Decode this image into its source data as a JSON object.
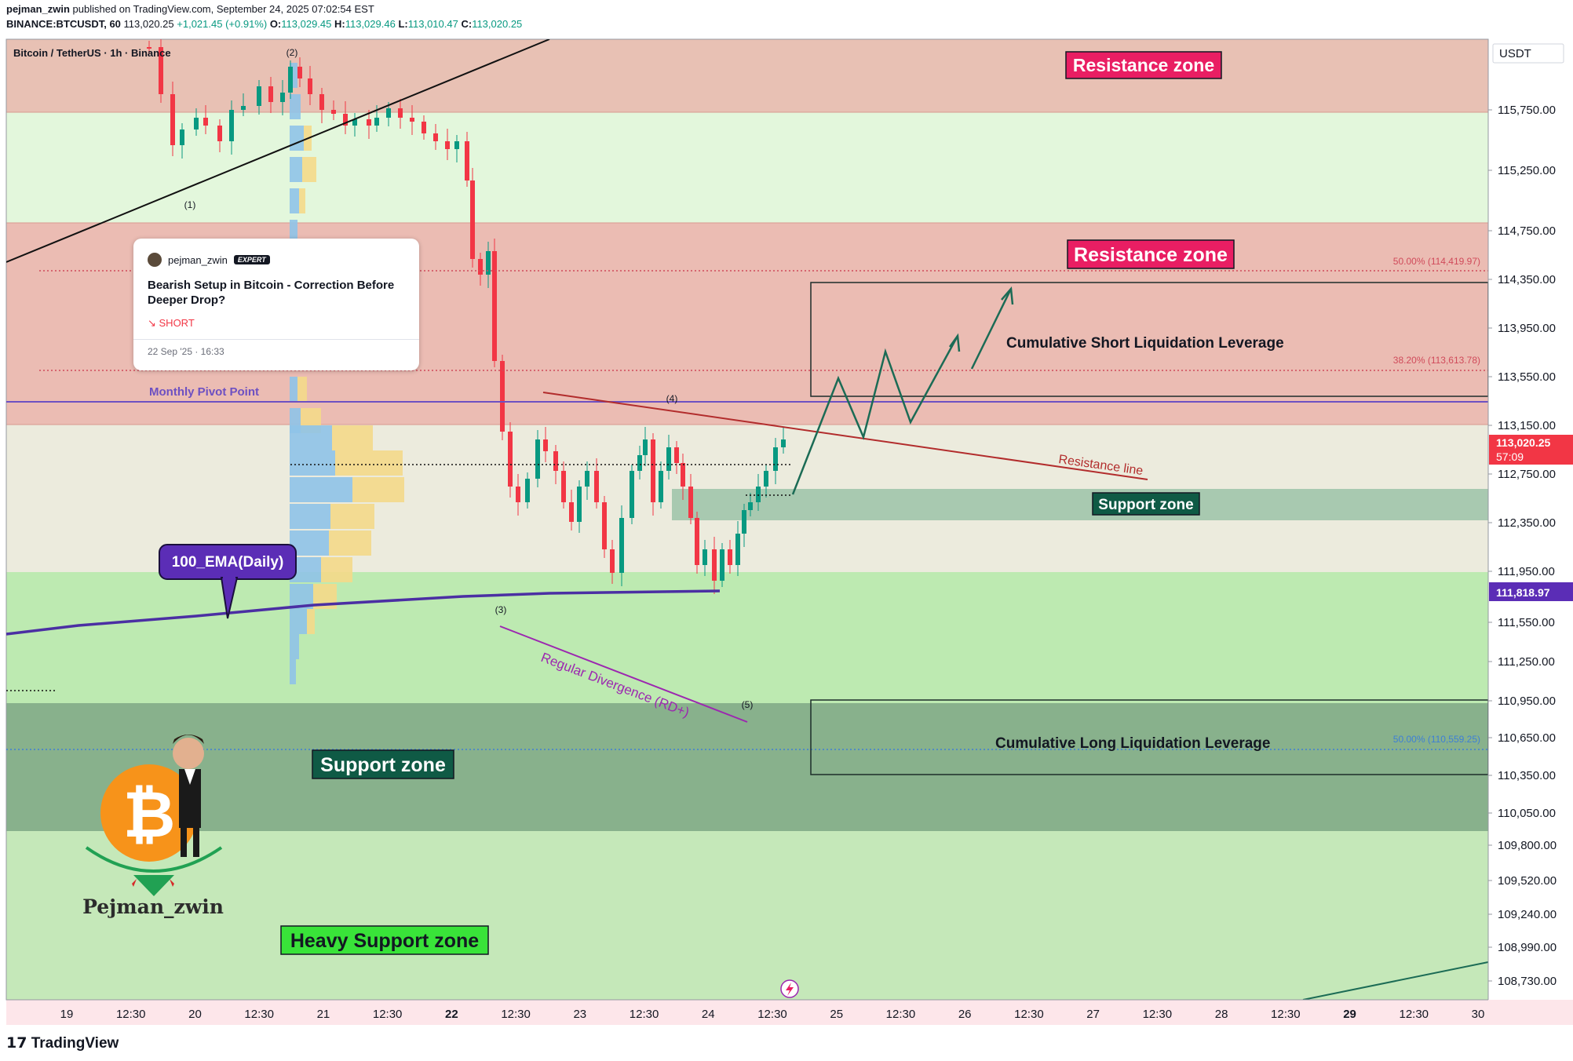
{
  "header": {
    "line1": {
      "author": "pejman_zwin",
      "rest": " published on TradingView.com, September 24, 2025 07:02:54 EST"
    },
    "line2": {
      "symbol": "BINANCE:BTCUSDT, 60",
      "last": "113,020.25",
      "change": "+1,021.45 (+0.91%)",
      "o_label": "O:",
      "o": "113,029.45",
      "h_label": "H:",
      "h": "113,029.46",
      "l_label": "L:",
      "l": "113,010.47",
      "c_label": "C:",
      "c": "113,020.25"
    }
  },
  "colors": {
    "up": "#089981",
    "down": "#f23645",
    "resistance_zone": "#e8b3ab",
    "light_green": "#e5f8de",
    "mid_beige": "#ecebdd",
    "support_green": "#bdeab1",
    "dark_green": "#86b18c",
    "heavy_green": "#c6e8bb",
    "ema": "#4b2fa3",
    "pivot": "#6d50c2",
    "resistance_line": "#b22c2c",
    "divergence": "#9c27b0",
    "projection": "#1b6b55"
  },
  "card": {
    "user": "pejman_zwin",
    "badge": "EXPERT",
    "title": "Bearish Setup in Bitcoin - Correction Before Deeper Drop?",
    "direction": "↘ SHORT",
    "date": "22 Sep '25 · 16:33"
  },
  "footer": {
    "logo": "TradingView"
  },
  "chart_data": {
    "type": "candlestick",
    "title": "Bitcoin / TetherUS · 1h · Binance",
    "currency": "USDT",
    "y_axis_ticks": [
      "115,750.00",
      "115,250.00",
      "114,750.00",
      "114,350.00",
      "113,950.00",
      "113,550.00",
      "113,150.00",
      "112,750.00",
      "112,350.00",
      "111,950.00",
      "111,550.00",
      "111,250.00",
      "110,950.00",
      "110,650.00",
      "110,350.00",
      "110,050.00",
      "109,800.00",
      "109,520.00",
      "109,240.00",
      "108,990.00",
      "108,730.00"
    ],
    "x_axis_ticks": [
      {
        "label": "19",
        "bold": false
      },
      {
        "label": "12:30",
        "bold": false
      },
      {
        "label": "20",
        "bold": false
      },
      {
        "label": "12:30",
        "bold": false
      },
      {
        "label": "21",
        "bold": false
      },
      {
        "label": "12:30",
        "bold": false
      },
      {
        "label": "22",
        "bold": true
      },
      {
        "label": "12:30",
        "bold": false
      },
      {
        "label": "23",
        "bold": false
      },
      {
        "label": "12:30",
        "bold": false
      },
      {
        "label": "24",
        "bold": false
      },
      {
        "label": "12:30",
        "bold": false
      },
      {
        "label": "25",
        "bold": false
      },
      {
        "label": "12:30",
        "bold": false
      },
      {
        "label": "26",
        "bold": false
      },
      {
        "label": "12:30",
        "bold": false
      },
      {
        "label": "27",
        "bold": false
      },
      {
        "label": "12:30",
        "bold": false
      },
      {
        "label": "28",
        "bold": false
      },
      {
        "label": "12:30",
        "bold": false
      },
      {
        "label": "29",
        "bold": true
      },
      {
        "label": "12:30",
        "bold": false
      },
      {
        "label": "30",
        "bold": false
      }
    ],
    "price_labels": {
      "last_price": "113,020.25",
      "countdown": "57:09",
      "ema_value": "111,818.97"
    },
    "zones": [
      {
        "label": "Resistance zone",
        "from": 115750,
        "to": 116400,
        "kind": "resistance"
      },
      {
        "label": "Resistance zone",
        "from": 113150,
        "to": 114750,
        "kind": "resistance"
      },
      {
        "label": "Support zone",
        "from": 112350,
        "to": 112750,
        "kind": "support"
      },
      {
        "label": "Support zone",
        "from": 110000,
        "to": 110950,
        "kind": "support"
      },
      {
        "label": "Heavy Support zone",
        "from": 108600,
        "to": 110000,
        "kind": "heavy-support"
      }
    ],
    "fib_levels": [
      {
        "label": "50.00% (114,419.97)",
        "value": 114419.97
      },
      {
        "label": "38.20% (113,613.78)",
        "value": 113613.78
      },
      {
        "label": "50.00% (110,559.25)",
        "value": 110559.25
      }
    ],
    "annotations": {
      "monthly_pivot": "Monthly Pivot Point",
      "ema": "100_EMA(Daily)",
      "resistance_line": "Resistance line",
      "divergence": "Regular Divergence (RD+)",
      "short_liq": "Cumulative Short Liquidation Leverage",
      "long_liq": "Cumulative Long Liquidation Leverage",
      "waves": [
        "(1)",
        "(2)",
        "(3)",
        "(4)",
        "(5)"
      ],
      "logo_text": "Pejman_zwin"
    }
  }
}
